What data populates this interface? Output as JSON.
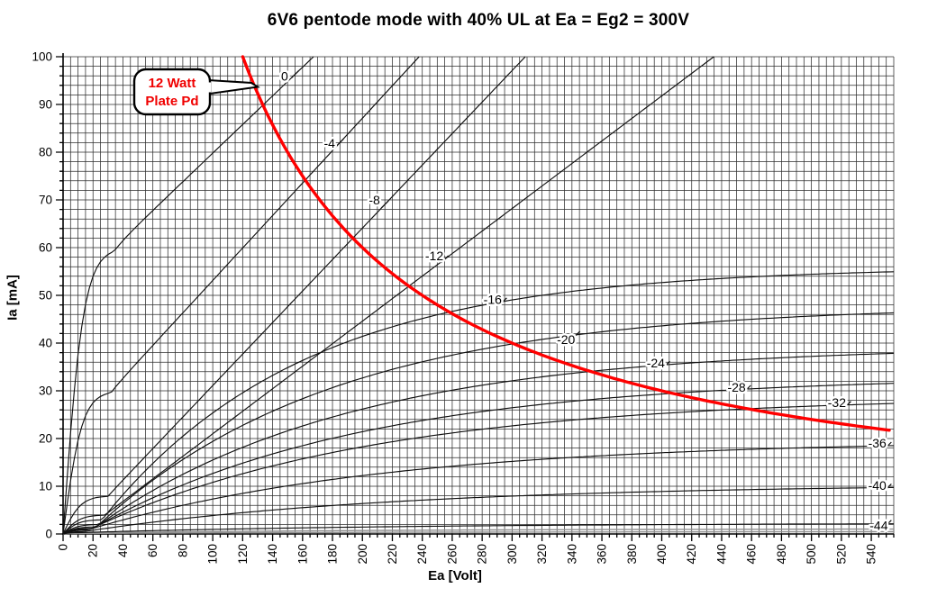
{
  "title": "6V6 pentode mode with 40% UL at Ea = Eg2 = 300V",
  "chart_data": {
    "type": "line",
    "title": "6V6 pentode mode with 40% UL at Ea = Eg2 = 300V",
    "xlabel": "Ea [Volt]",
    "ylabel": "Ia [mA]",
    "x_range": [
      0,
      555
    ],
    "y_range": [
      0,
      100
    ],
    "x_major_tick": 20,
    "x_last_tick_label": 540,
    "x_minor_tick": 5,
    "y_major_tick": 10,
    "y_minor_tick": 2,
    "grid": "minor-both",
    "grid_color": "#2e2e2e",
    "curve_color": "#111111",
    "faint_curve_color": "#8f8f8f",
    "series_note": "Anode current curves per control-grid voltage; knee_v = knee voltage [V], i0 = knee current [mA]; upper curves continue linearly with slope_ma_per_v, lower curves saturate toward i0+sat_a with constant sat_t; label_at = [Ea V, Ia mA] of the printed curve label",
    "series": [
      {
        "label": "0",
        "vg": 0,
        "knee_v": 34,
        "i0": 60,
        "slope_ma_per_v": 0.3,
        "label_at": [
          148,
          95.8
        ]
      },
      {
        "label": "-4",
        "vg": -4,
        "knee_v": 32,
        "i0": 30,
        "slope_ma_per_v": 0.34,
        "label_at": [
          178,
          81.7
        ]
      },
      {
        "label": "-8",
        "vg": -8,
        "knee_v": 30,
        "i0": 8,
        "slope_ma_per_v": 0.33,
        "label_at": [
          208,
          69.8
        ]
      },
      {
        "label": "-12",
        "vg": -12,
        "knee_v": 28,
        "i0": 4,
        "slope_ma_per_v": 0.236,
        "label_at": [
          248,
          58.1
        ]
      },
      {
        "label": "-16",
        "vg": -16,
        "knee_v": 26,
        "i0": 3,
        "sat_a": 53,
        "sat_t": 135,
        "label_at": [
          287,
          49.0
        ]
      },
      {
        "label": "-20",
        "vg": -20,
        "knee_v": 24,
        "i0": 2,
        "sat_a": 46,
        "sat_t": 160,
        "label_at": [
          336,
          40.6
        ]
      },
      {
        "label": "-24",
        "vg": -24,
        "knee_v": 22,
        "i0": 1.5,
        "sat_a": 38,
        "sat_t": 170,
        "label_at": [
          396,
          35.7
        ]
      },
      {
        "label": "-28",
        "vg": -28,
        "knee_v": 20,
        "i0": 1.2,
        "sat_a": 32,
        "sat_t": 180,
        "label_at": [
          450,
          30.6
        ]
      },
      {
        "label": "-32",
        "vg": -32,
        "knee_v": 18,
        "i0": 1.0,
        "sat_a": 28,
        "sat_t": 190,
        "label_at": [
          517,
          27.4
        ]
      },
      {
        "label": "-36",
        "vg": -36,
        "knee_v": 16,
        "i0": 0.8,
        "sat_a": 19,
        "sat_t": 200,
        "label_at": [
          544,
          18.9
        ]
      },
      {
        "label": "-40",
        "vg": -40,
        "knee_v": 14,
        "i0": 0.5,
        "sat_a": 10,
        "sat_t": 210,
        "label_at": [
          544,
          10.0
        ]
      },
      {
        "label": "-44",
        "vg": -44,
        "knee_v": 12,
        "i0": 0.3,
        "sat_a": 2,
        "sat_t": 220,
        "label_at": [
          545,
          1.6
        ]
      }
    ],
    "faint_series": [
      {
        "knee_v": 10,
        "i0": 0.2,
        "sat_a": 0.9,
        "sat_t": 220
      },
      {
        "knee_v": 8,
        "i0": 0.1,
        "sat_a": 0.4,
        "sat_t": 220
      }
    ],
    "dissipation_limit": {
      "watts": 12,
      "formula": "Ia[mA] = 12000 / Ea[V]",
      "v_start": 120,
      "v_end": 555,
      "color": "#ff0000",
      "callout_lines": [
        "12 Watt",
        "Plate Pd"
      ],
      "callout_text_color": "#f00000"
    }
  }
}
